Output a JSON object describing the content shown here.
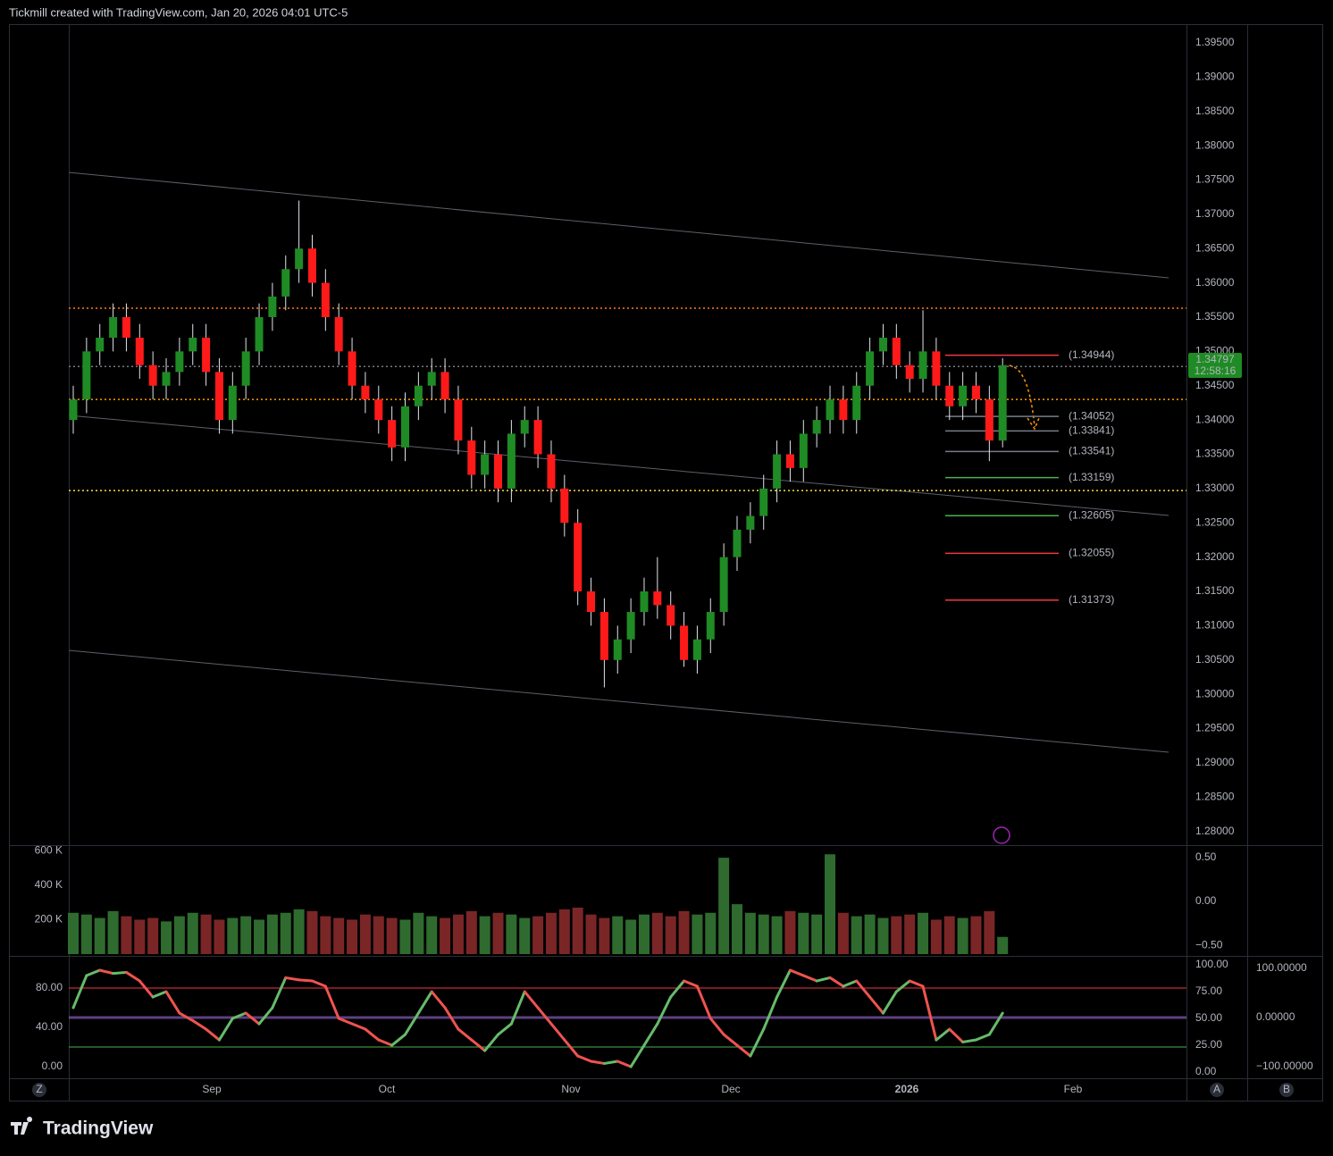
{
  "header": "Tickmill created with TradingView.com, Jan 20, 2026 04:01 UTC-5",
  "footer_logo": "TradingView",
  "scale_buttons": [
    "Z",
    "A",
    "B"
  ],
  "chart_data": [
    {
      "type": "candlestick",
      "open": [
        1.34,
        1.343,
        1.35,
        1.352,
        1.355,
        1.352,
        1.348,
        1.345,
        1.347,
        1.35,
        1.352,
        1.347,
        1.34,
        1.345,
        1.35,
        1.355,
        1.358,
        1.362,
        1.365,
        1.36,
        1.355,
        1.35,
        1.345,
        1.343,
        1.34,
        1.336,
        1.342,
        1.345,
        1.347,
        1.343,
        1.337,
        1.332,
        1.335,
        1.33,
        1.338,
        1.34,
        1.335,
        1.33,
        1.325,
        1.315,
        1.312,
        1.305,
        1.308,
        1.312,
        1.315,
        1.313,
        1.31,
        1.305,
        1.308,
        1.312,
        1.32,
        1.324,
        1.326,
        1.33,
        1.335,
        1.333,
        1.338,
        1.34,
        1.343,
        1.34,
        1.345,
        1.35,
        1.352,
        1.348,
        1.346,
        1.35,
        1.345,
        1.342,
        1.345,
        1.343,
        1.337
      ],
      "high": [
        1.345,
        1.352,
        1.354,
        1.357,
        1.357,
        1.354,
        1.35,
        1.349,
        1.352,
        1.354,
        1.354,
        1.349,
        1.347,
        1.352,
        1.357,
        1.36,
        1.364,
        1.372,
        1.367,
        1.362,
        1.357,
        1.352,
        1.347,
        1.345,
        1.342,
        1.344,
        1.347,
        1.349,
        1.349,
        1.345,
        1.339,
        1.337,
        1.337,
        1.34,
        1.342,
        1.342,
        1.337,
        1.332,
        1.327,
        1.317,
        1.314,
        1.31,
        1.314,
        1.317,
        1.32,
        1.315,
        1.312,
        1.31,
        1.314,
        1.322,
        1.326,
        1.328,
        1.332,
        1.337,
        1.337,
        1.34,
        1.342,
        1.345,
        1.345,
        1.347,
        1.352,
        1.354,
        1.354,
        1.35,
        1.356,
        1.352,
        1.347,
        1.347,
        1.347,
        1.345,
        1.349
      ],
      "low": [
        1.338,
        1.341,
        1.348,
        1.35,
        1.35,
        1.346,
        1.343,
        1.343,
        1.345,
        1.348,
        1.345,
        1.338,
        1.338,
        1.343,
        1.348,
        1.353,
        1.356,
        1.36,
        1.358,
        1.353,
        1.348,
        1.343,
        1.341,
        1.338,
        1.334,
        1.334,
        1.34,
        1.343,
        1.341,
        1.335,
        1.33,
        1.33,
        1.328,
        1.328,
        1.336,
        1.333,
        1.328,
        1.323,
        1.313,
        1.31,
        1.301,
        1.303,
        1.306,
        1.31,
        1.311,
        1.308,
        1.304,
        1.303,
        1.306,
        1.31,
        1.318,
        1.322,
        1.324,
        1.328,
        1.331,
        1.331,
        1.336,
        1.338,
        1.338,
        1.338,
        1.343,
        1.348,
        1.346,
        1.344,
        1.344,
        1.343,
        1.34,
        1.34,
        1.341,
        1.334,
        1.336
      ],
      "close": [
        1.343,
        1.35,
        1.352,
        1.355,
        1.352,
        1.348,
        1.345,
        1.347,
        1.35,
        1.352,
        1.347,
        1.34,
        1.345,
        1.35,
        1.355,
        1.358,
        1.362,
        1.365,
        1.36,
        1.355,
        1.35,
        1.345,
        1.343,
        1.34,
        1.336,
        1.342,
        1.345,
        1.347,
        1.343,
        1.337,
        1.332,
        1.335,
        1.33,
        1.338,
        1.34,
        1.335,
        1.33,
        1.325,
        1.315,
        1.312,
        1.305,
        1.308,
        1.312,
        1.315,
        1.313,
        1.31,
        1.305,
        1.308,
        1.312,
        1.32,
        1.324,
        1.326,
        1.33,
        1.335,
        1.333,
        1.338,
        1.34,
        1.343,
        1.34,
        1.345,
        1.35,
        1.352,
        1.348,
        1.346,
        1.35,
        1.345,
        1.342,
        1.345,
        1.343,
        1.337,
        1.34797
      ],
      "up_color": "#1f8b24",
      "down_color": "#ff1a1a",
      "ylim": [
        1.278,
        1.3976
      ],
      "yticks": [
        {
          "value": 1.395,
          "label": "1.39500"
        },
        {
          "value": 1.39,
          "label": "1.39000"
        },
        {
          "value": 1.385,
          "label": "1.38500"
        },
        {
          "value": 1.38,
          "label": "1.38000"
        },
        {
          "value": 1.375,
          "label": "1.37500"
        },
        {
          "value": 1.37,
          "label": "1.37000"
        },
        {
          "value": 1.365,
          "label": "1.36500"
        },
        {
          "value": 1.36,
          "label": "1.36000"
        },
        {
          "value": 1.355,
          "label": "1.35500"
        },
        {
          "value": 1.35,
          "label": "1.35000"
        },
        {
          "value": 1.345,
          "label": "1.34500"
        },
        {
          "value": 1.34,
          "label": "1.34000"
        },
        {
          "value": 1.335,
          "label": "1.33500"
        },
        {
          "value": 1.33,
          "label": "1.33000"
        },
        {
          "value": 1.325,
          "label": "1.32500"
        },
        {
          "value": 1.32,
          "label": "1.32000"
        },
        {
          "value": 1.315,
          "label": "1.31500"
        },
        {
          "value": 1.31,
          "label": "1.31000"
        },
        {
          "value": 1.305,
          "label": "1.30500"
        },
        {
          "value": 1.3,
          "label": "1.30000"
        },
        {
          "value": 1.295,
          "label": "1.29500"
        },
        {
          "value": 1.29,
          "label": "1.29000"
        },
        {
          "value": 1.285,
          "label": "1.28500"
        },
        {
          "value": 1.28,
          "label": "1.28000"
        }
      ],
      "x_labels": [
        "Sep",
        "Oct",
        "Nov",
        "Dec",
        "2026",
        "Feb"
      ],
      "last_price": 1.34797,
      "last_price_color": "#1f8b24",
      "countdown": "12:58:16",
      "levels": [
        {
          "value": 1.34944,
          "label": "(1.34944)",
          "color": "#f23645"
        },
        {
          "value": 1.34052,
          "label": "(1.34052)",
          "color": "#787b86"
        },
        {
          "value": 1.33841,
          "label": "(1.33841)",
          "color": "#787b86"
        },
        {
          "value": 1.33541,
          "label": "(1.33541)",
          "color": "#787b86"
        },
        {
          "value": 1.33159,
          "label": "(1.33159)",
          "color": "#4caf50"
        },
        {
          "value": 1.32605,
          "label": "(1.32605)",
          "color": "#4caf50"
        },
        {
          "value": 1.32055,
          "label": "(1.32055)",
          "color": "#f23645"
        },
        {
          "value": 1.31373,
          "label": "(1.31373)",
          "color": "#f23645"
        }
      ],
      "dotted_levels": [
        {
          "value": 1.3563,
          "color": "#ff7a1a"
        },
        {
          "value": 1.3478,
          "color": "#787b86"
        },
        {
          "value": 1.343,
          "color": "#ff9800"
        },
        {
          "value": 1.3297,
          "color": "#f5e04a"
        }
      ]
    },
    {
      "type": "bar",
      "values": [
        240000,
        230000,
        210000,
        250000,
        220000,
        200000,
        210000,
        190000,
        220000,
        240000,
        230000,
        200000,
        210000,
        220000,
        200000,
        230000,
        240000,
        260000,
        250000,
        220000,
        210000,
        200000,
        230000,
        220000,
        210000,
        200000,
        240000,
        220000,
        210000,
        230000,
        250000,
        220000,
        240000,
        230000,
        210000,
        220000,
        240000,
        260000,
        270000,
        230000,
        210000,
        220000,
        200000,
        230000,
        240000,
        220000,
        250000,
        230000,
        240000,
        560000,
        290000,
        240000,
        230000,
        220000,
        250000,
        240000,
        230000,
        580000,
        240000,
        220000,
        230000,
        210000,
        220000,
        230000,
        240000,
        200000,
        220000,
        210000,
        220000,
        250000,
        100000
      ],
      "ylim": [
        0,
        623000
      ],
      "yticks": [
        {
          "value": 200000,
          "label": "200 K"
        },
        {
          "value": 400000,
          "label": "400 K"
        },
        {
          "value": 600000,
          "label": "600 K"
        }
      ],
      "y2lim": [
        -0.62,
        0.62
      ],
      "y2ticks": [
        {
          "value": 0.5,
          "label": "0.50"
        },
        {
          "value": 0,
          "label": "0.00"
        },
        {
          "value": -0.5,
          "label": "−0.50"
        }
      ]
    },
    {
      "type": "line",
      "series": [
        {
          "axis": "y2",
          "up_color": "#66bb6a",
          "down_color": "#ef5350",
          "values": [
            60,
            90,
            95,
            92,
            93,
            85,
            70,
            75,
            55,
            48,
            40,
            30,
            50,
            55,
            45,
            60,
            88,
            86,
            85,
            80,
            50,
            45,
            40,
            30,
            25,
            35,
            55,
            75,
            60,
            40,
            30,
            20,
            35,
            45,
            75,
            60,
            45,
            30,
            15,
            10,
            8,
            10,
            5,
            25,
            45,
            70,
            85,
            80,
            50,
            35,
            25,
            15,
            40,
            70,
            95,
            90,
            85,
            88,
            80,
            85,
            70,
            55,
            75,
            85,
            80,
            30,
            40,
            28,
            30,
            35,
            55
          ]
        }
      ],
      "ylim": [
        -11.8,
        110.9
      ],
      "yticks": [
        {
          "value": 80,
          "label": "80.00"
        },
        {
          "value": 40,
          "label": "40.00"
        },
        {
          "value": 0,
          "label": "0.00"
        }
      ],
      "y2lim": [
        -5.8,
        106.7
      ],
      "y2ticks": [
        {
          "value": 100,
          "label": "100.00"
        },
        {
          "value": 75,
          "label": "75.00"
        },
        {
          "value": 50,
          "label": "50.00"
        },
        {
          "value": 25,
          "label": "25.00"
        },
        {
          "value": 0,
          "label": "0.00"
        }
      ],
      "y3lim": [
        -123.6,
        121.8
      ],
      "y3ticks": [
        {
          "value": 100,
          "label": "100.00000"
        },
        {
          "value": 0,
          "label": "0.00000"
        },
        {
          "value": -100,
          "label": "−100.00000"
        }
      ],
      "levels": [
        {
          "value": 80,
          "color": "#f23645"
        },
        {
          "value": 50,
          "color": "#9c6bd6"
        },
        {
          "value": 20,
          "color": "#4caf50"
        }
      ]
    }
  ]
}
